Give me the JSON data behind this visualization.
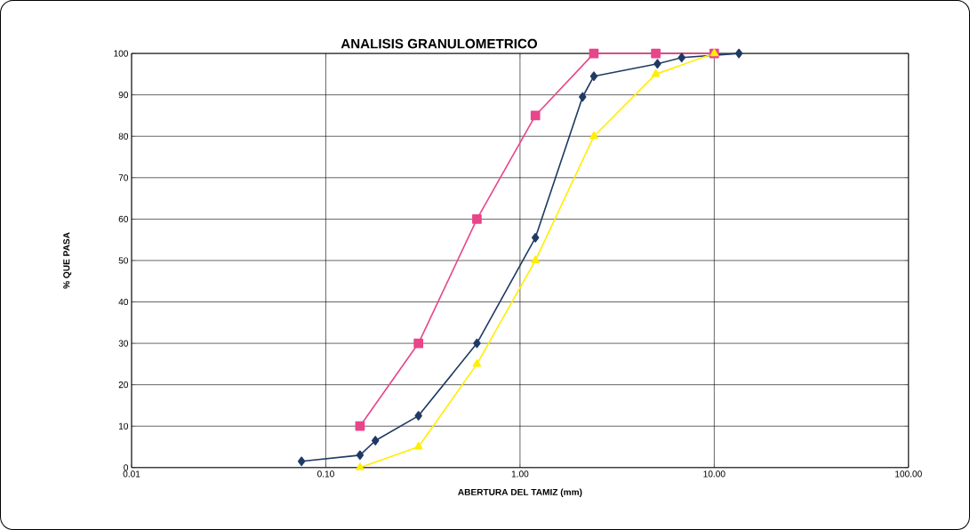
{
  "chart_data": {
    "type": "line",
    "title": "ANALISIS GRANULOMETRICO",
    "xlabel": "ABERTURA DEL TAMIZ (mm)",
    "ylabel": "% QUE PASA",
    "log": "x",
    "grid": true,
    "xlim": [
      0.01,
      100
    ],
    "ylim": [
      0,
      100
    ],
    "xticks": [
      {
        "value": 0.01,
        "label": "0.01"
      },
      {
        "value": 0.1,
        "label": "0.10"
      },
      {
        "value": 1,
        "label": "1.00"
      },
      {
        "value": 10,
        "label": "10.00"
      },
      {
        "value": 100,
        "label": "100.00"
      }
    ],
    "yticks": [
      0,
      10,
      20,
      30,
      40,
      50,
      60,
      70,
      80,
      90,
      100
    ],
    "series": [
      {
        "color": "#1f3a64",
        "marker": "diamond",
        "x": [
          0.075,
          0.15,
          0.18,
          0.3,
          0.6,
          1.2,
          2.1,
          2.4,
          5.1,
          6.8,
          9.5,
          13.4
        ],
        "values": [
          1.5,
          3,
          6.5,
          12.5,
          30,
          55.5,
          89.5,
          94.5,
          97.5,
          99,
          null,
          100
        ]
      },
      {
        "color": "#e8458b",
        "marker": "square",
        "x": [
          0.15,
          0.3,
          0.6,
          1.2,
          2.4,
          5,
          10
        ],
        "values": [
          10,
          30,
          60,
          85,
          100,
          100,
          100
        ]
      },
      {
        "color": "#ffee00",
        "marker": "triangle",
        "x": [
          0.15,
          0.3,
          0.6,
          1.2,
          2.4,
          5,
          10
        ],
        "values": [
          0,
          5,
          25,
          50,
          80,
          95,
          100
        ]
      }
    ]
  }
}
